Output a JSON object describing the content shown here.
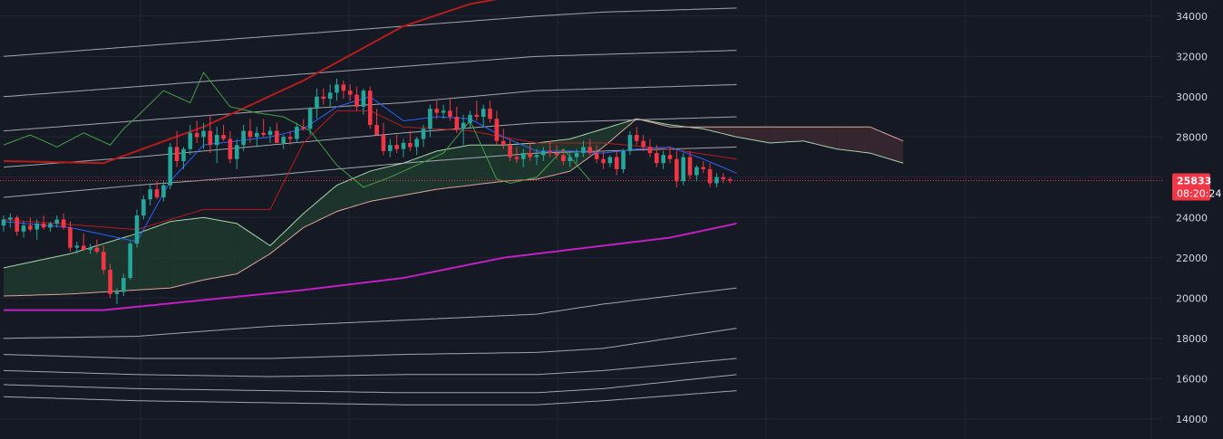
{
  "chart_data": {
    "type": "candlestick",
    "ylim": [
      13000,
      34800
    ],
    "x_count": 110,
    "yticks": [
      14000,
      16000,
      18000,
      20000,
      22000,
      24000,
      26000,
      28000,
      30000,
      32000,
      34000
    ],
    "ytick_labels": [
      "14000",
      "16000",
      "18000",
      "20000",
      "22000",
      "24000",
      "26000",
      "28000",
      "30000",
      "32000",
      "34000"
    ],
    "grid": true,
    "price_badge": {
      "value": 25833,
      "label": "25833",
      "countdown": "08:20:24",
      "color": "#f23645"
    },
    "colors": {
      "up": "#26a69a",
      "down": "#f23645",
      "ma_red": "#b71c1c",
      "ma_magenta": "#c020c0",
      "band": "#b2b5be",
      "tenkan": "#2962ff",
      "kijun": "#b71c1c",
      "lagging": "#43a047",
      "span_a": "#a5d6a7",
      "span_b": "#e0a39a",
      "cloud_bull": "#1e3a2f",
      "cloud_bear": "#3a2830"
    },
    "candles": [
      [
        23600,
        24100,
        23300,
        23900
      ],
      [
        23900,
        24200,
        23500,
        24000
      ],
      [
        24000,
        24100,
        23100,
        23300
      ],
      [
        23300,
        23800,
        23000,
        23600
      ],
      [
        23600,
        24000,
        23300,
        23400
      ],
      [
        23400,
        23900,
        22900,
        23700
      ],
      [
        23700,
        24100,
        23400,
        23500
      ],
      [
        23500,
        23800,
        23300,
        23700
      ],
      [
        23700,
        24100,
        23500,
        23900
      ],
      [
        23900,
        24200,
        23400,
        23500
      ],
      [
        23500,
        23800,
        22300,
        22500
      ],
      [
        22500,
        22800,
        22200,
        22600
      ],
      [
        22600,
        23200,
        22400,
        22400
      ],
      [
        22400,
        22700,
        22200,
        22500
      ],
      [
        22500,
        22900,
        22200,
        22300
      ],
      [
        22300,
        22600,
        21200,
        21400
      ],
      [
        21400,
        21700,
        20000,
        20200
      ],
      [
        20200,
        20500,
        19700,
        20300
      ],
      [
        20300,
        21200,
        20100,
        21000
      ],
      [
        21000,
        22800,
        20900,
        22700
      ],
      [
        22700,
        24400,
        22500,
        24100
      ],
      [
        24100,
        25100,
        23900,
        24900
      ],
      [
        24900,
        25700,
        24600,
        25400
      ],
      [
        25400,
        25800,
        24900,
        25000
      ],
      [
        25000,
        25800,
        24800,
        25600
      ],
      [
        25600,
        27700,
        25400,
        27500
      ],
      [
        27500,
        28300,
        26500,
        26800
      ],
      [
        26800,
        27500,
        26400,
        27400
      ],
      [
        27400,
        28600,
        27100,
        28200
      ],
      [
        28200,
        28800,
        27700,
        28000
      ],
      [
        28000,
        28700,
        27400,
        28300
      ],
      [
        28300,
        29100,
        27200,
        27600
      ],
      [
        27600,
        28500,
        26700,
        28100
      ],
      [
        28100,
        28600,
        27800,
        27900
      ],
      [
        27900,
        28300,
        26700,
        26900
      ],
      [
        26900,
        27900,
        26400,
        27600
      ],
      [
        27600,
        28600,
        27300,
        28300
      ],
      [
        28300,
        28900,
        27700,
        28000
      ],
      [
        28000,
        28500,
        27500,
        28200
      ],
      [
        28200,
        28900,
        28000,
        28100
      ],
      [
        28100,
        28500,
        27700,
        28300
      ],
      [
        28300,
        28700,
        27800,
        27700
      ],
      [
        27700,
        28100,
        27400,
        28000
      ],
      [
        28000,
        28300,
        27600,
        27900
      ],
      [
        27900,
        28700,
        27700,
        28500
      ],
      [
        28500,
        28900,
        28300,
        28400
      ],
      [
        28400,
        29500,
        28100,
        29400
      ],
      [
        29400,
        30400,
        28900,
        30000
      ],
      [
        30000,
        30400,
        29600,
        29900
      ],
      [
        29900,
        30600,
        29500,
        30200
      ],
      [
        30200,
        30900,
        29800,
        30600
      ],
      [
        30600,
        30800,
        29900,
        30300
      ],
      [
        30300,
        30600,
        29800,
        30100
      ],
      [
        30100,
        30500,
        29300,
        29500
      ],
      [
        29500,
        30400,
        29100,
        30300
      ],
      [
        30300,
        30500,
        28400,
        28600
      ],
      [
        28600,
        29400,
        28300,
        28100
      ],
      [
        28100,
        28700,
        27100,
        27300
      ],
      [
        27300,
        27900,
        27000,
        27600
      ],
      [
        27600,
        28100,
        27200,
        27400
      ],
      [
        27400,
        27900,
        27000,
        27700
      ],
      [
        27700,
        28300,
        27300,
        27500
      ],
      [
        27500,
        28000,
        27100,
        27900
      ],
      [
        27900,
        28600,
        27500,
        28400
      ],
      [
        28400,
        29600,
        28000,
        29400
      ],
      [
        29400,
        29800,
        28900,
        29200
      ],
      [
        29200,
        29600,
        28900,
        29300
      ],
      [
        29300,
        29900,
        28800,
        29000
      ],
      [
        29000,
        29500,
        28200,
        28400
      ],
      [
        28400,
        29100,
        27600,
        28700
      ],
      [
        28700,
        29300,
        28400,
        29100
      ],
      [
        29100,
        29800,
        28800,
        29000
      ],
      [
        29000,
        29600,
        28500,
        29400
      ],
      [
        29400,
        29800,
        28700,
        28900
      ],
      [
        28900,
        29300,
        27600,
        27800
      ],
      [
        27800,
        28400,
        27400,
        27600
      ],
      [
        27600,
        27900,
        26800,
        27000
      ],
      [
        27000,
        27500,
        26700,
        26900
      ],
      [
        26900,
        27400,
        26500,
        27200
      ],
      [
        27200,
        27700,
        26800,
        27000
      ],
      [
        27000,
        27400,
        26600,
        27100
      ],
      [
        27100,
        27500,
        26800,
        27300
      ],
      [
        27300,
        27800,
        27000,
        27200
      ],
      [
        27200,
        27600,
        26900,
        27100
      ],
      [
        27100,
        27400,
        26600,
        26800
      ],
      [
        26800,
        27300,
        26500,
        27000
      ],
      [
        27000,
        27400,
        26700,
        27200
      ],
      [
        27200,
        27800,
        27000,
        27500
      ],
      [
        27500,
        27900,
        27100,
        27200
      ],
      [
        27200,
        27600,
        26700,
        26900
      ],
      [
        26900,
        27300,
        26400,
        26700
      ],
      [
        26700,
        27100,
        26500,
        27000
      ],
      [
        27000,
        27300,
        26100,
        26400
      ],
      [
        26400,
        27400,
        26200,
        27300
      ],
      [
        27300,
        28300,
        27100,
        28100
      ],
      [
        28100,
        28500,
        27600,
        27800
      ],
      [
        27800,
        28100,
        27300,
        27500
      ],
      [
        27500,
        27900,
        27000,
        27200
      ],
      [
        27200,
        27600,
        26500,
        26700
      ],
      [
        26700,
        27300,
        26400,
        27100
      ],
      [
        27100,
        27500,
        26700,
        26900
      ],
      [
        26900,
        27300,
        25500,
        25800
      ],
      [
        25800,
        27200,
        25600,
        27000
      ],
      [
        27000,
        27300,
        25900,
        26100
      ],
      [
        26100,
        26600,
        25800,
        26500
      ],
      [
        26500,
        26800,
        26200,
        26400
      ],
      [
        26400,
        26700,
        25500,
        25700
      ],
      [
        25700,
        26200,
        25500,
        26000
      ],
      [
        26000,
        26200,
        25700,
        25900
      ],
      [
        25900,
        26000,
        25700,
        25833
      ]
    ],
    "series": [
      {
        "name": "",
        "role": "ma_red",
        "x": [
          0,
          15,
          30,
          45,
          60,
          70,
          75
        ],
        "values": [
          26800,
          26700,
          28500,
          30800,
          33500,
          34600,
          34900
        ]
      },
      {
        "name": "",
        "role": "ma_magenta",
        "x": [
          0,
          15,
          30,
          45,
          60,
          75,
          90,
          100,
          110
        ],
        "values": [
          19400,
          19400,
          19900,
          20400,
          21000,
          22000,
          22600,
          23000,
          23700
        ]
      },
      {
        "name": "",
        "role": "kijun",
        "x": [
          0,
          20,
          30,
          40,
          45,
          50,
          55,
          60,
          70,
          80,
          90,
          100,
          110
        ],
        "values": [
          23900,
          23400,
          24400,
          24400,
          27700,
          29300,
          29300,
          28500,
          28300,
          27700,
          27700,
          27400,
          26900
        ]
      },
      {
        "name": "",
        "role": "tenkan",
        "x": [
          0,
          10,
          20,
          25,
          30,
          35,
          40,
          45,
          50,
          55,
          60,
          65,
          70,
          75,
          80,
          85,
          90,
          95,
          100,
          105,
          110
        ],
        "values": [
          23800,
          23500,
          22800,
          25800,
          27600,
          27800,
          28000,
          28400,
          29500,
          30000,
          28800,
          29000,
          28900,
          28000,
          27300,
          27300,
          27200,
          27400,
          27500,
          26900,
          26200
        ]
      },
      {
        "name": "",
        "role": "lagging",
        "x": [
          0,
          4,
          8,
          12,
          16,
          18,
          20,
          24,
          28,
          30,
          34,
          38,
          42,
          46,
          50,
          54,
          58,
          62,
          66,
          70,
          74,
          76,
          80,
          84,
          88
        ],
        "values": [
          27600,
          28100,
          27500,
          28200,
          27600,
          28400,
          29000,
          30300,
          29700,
          31200,
          29500,
          29200,
          29000,
          28300,
          26600,
          25500,
          26000,
          26600,
          27200,
          28800,
          25900,
          25700,
          26000,
          27400,
          25833
        ]
      }
    ],
    "bands_upper": [
      [
        32000,
        32500,
        33000,
        33500,
        34000,
        34200,
        34400
      ],
      [
        30000,
        30500,
        31000,
        31500,
        32000,
        32100,
        32300
      ],
      [
        28300,
        28800,
        29300,
        29700,
        30300,
        30400,
        30600
      ],
      [
        26500,
        27000,
        27600,
        28200,
        28700,
        28800,
        29000
      ],
      [
        25000,
        25600,
        26100,
        26700,
        27200,
        27300,
        27500
      ]
    ],
    "bands_lower": [
      [
        18000,
        18100,
        18600,
        18900,
        19200,
        19700,
        20500
      ],
      [
        17200,
        17000,
        17000,
        17200,
        17300,
        17500,
        18500
      ],
      [
        16400,
        16200,
        16100,
        16200,
        16200,
        16400,
        17000
      ],
      [
        15700,
        15500,
        15400,
        15300,
        15300,
        15500,
        16200
      ],
      [
        15100,
        14900,
        14800,
        14700,
        14700,
        14900,
        15400
      ]
    ],
    "band_x": [
      0,
      20,
      40,
      60,
      80,
      90,
      110
    ],
    "ichimoku": {
      "x": [
        0,
        10,
        20,
        25,
        30,
        35,
        40,
        45,
        50,
        55,
        60,
        65,
        70,
        75,
        80,
        85,
        90,
        95,
        100,
        105,
        110,
        115,
        120,
        125,
        130,
        135
      ],
      "span_a": [
        21500,
        22200,
        23200,
        23800,
        24000,
        23700,
        22600,
        24200,
        25600,
        26300,
        26700,
        27300,
        27600,
        27600,
        27700,
        27900,
        28400,
        28900,
        28600,
        28400,
        28000,
        27700,
        27800,
        27400,
        27200,
        26700
      ],
      "span_b": [
        20100,
        20200,
        20400,
        20500,
        20900,
        21200,
        22200,
        23500,
        24300,
        24800,
        25100,
        25400,
        25600,
        25800,
        25900,
        26300,
        27500,
        28900,
        28500,
        28500,
        28500,
        28500,
        28500,
        28500,
        28500,
        27800
      ]
    }
  }
}
